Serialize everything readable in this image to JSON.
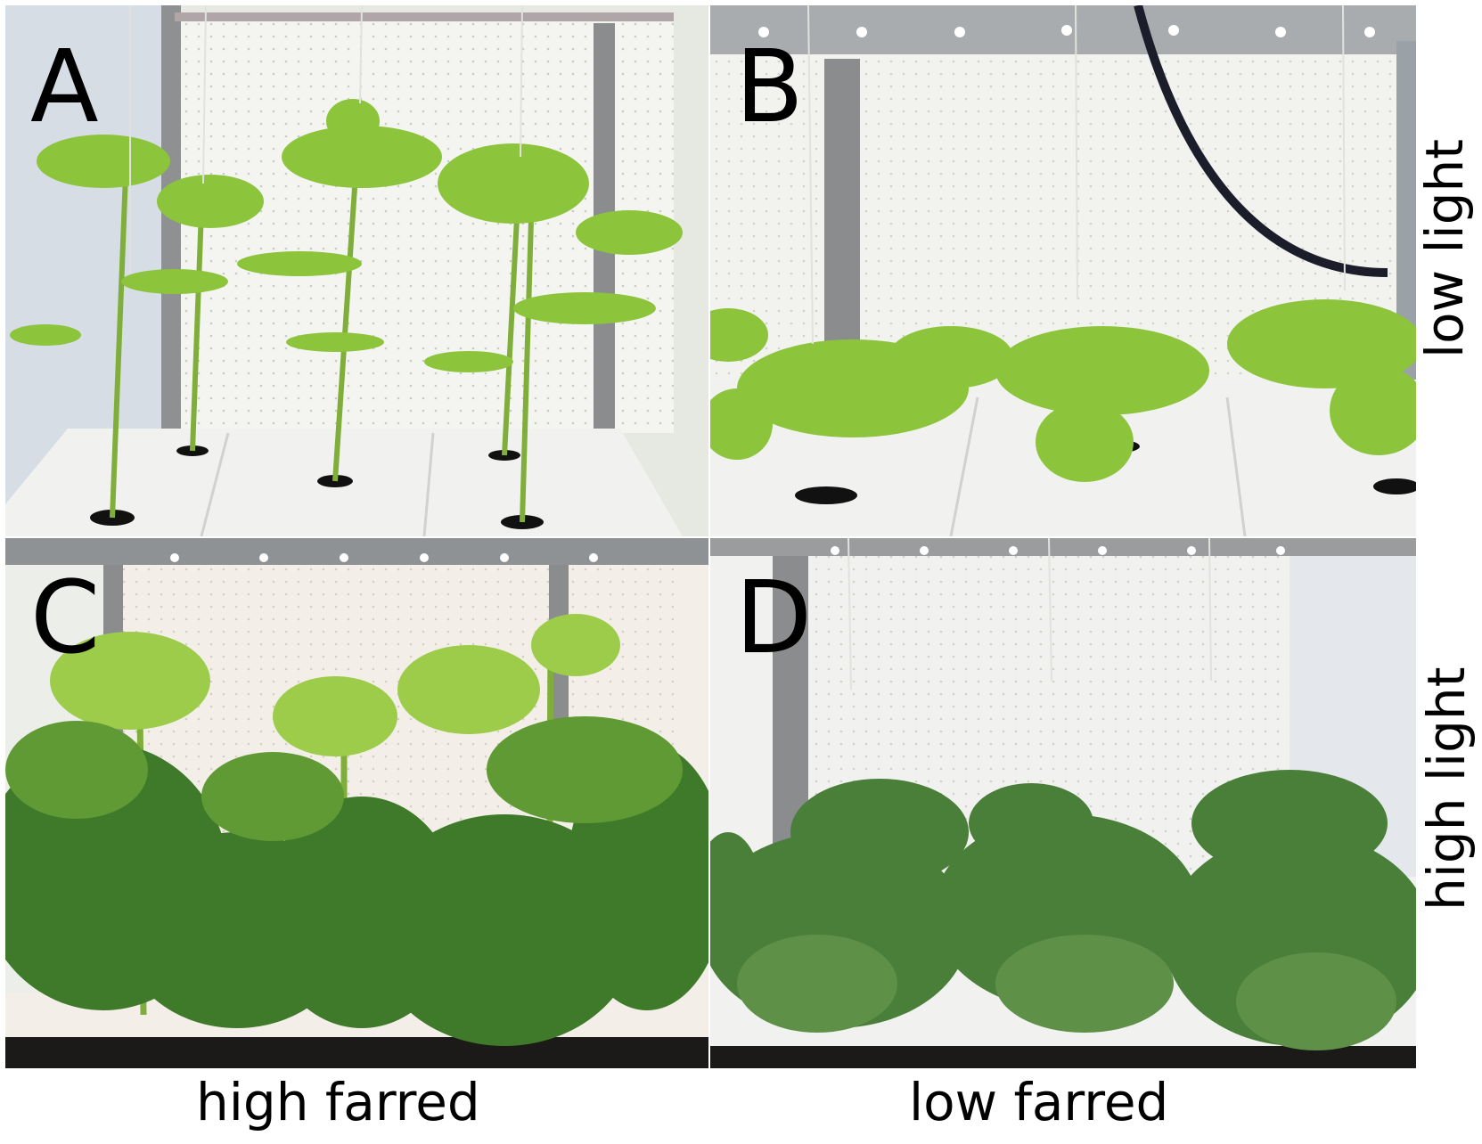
{
  "figure": {
    "panels": [
      {
        "letter": "A",
        "light_level": "low light",
        "farred_level": "high farred",
        "plant_form": "tall-stretched"
      },
      {
        "letter": "B",
        "light_level": "low light",
        "farred_level": "low farred",
        "plant_form": "short-compact"
      },
      {
        "letter": "C",
        "light_level": "high light",
        "farred_level": "high farred",
        "plant_form": "tall-dense"
      },
      {
        "letter": "D",
        "light_level": "high light",
        "farred_level": "low farred",
        "plant_form": "short-dense"
      }
    ],
    "column_labels": [
      "high farred",
      "low farred"
    ],
    "row_labels": [
      "low light",
      "high light"
    ]
  },
  "colors": {
    "background": "#ffffff",
    "wall": "#e9ece4",
    "floor": "#f1f2ef",
    "leaf_light": "#8cc43c",
    "leaf_dark": "#3f7a2a",
    "stem": "#7fae3a",
    "frame": "#8a8c8e"
  }
}
